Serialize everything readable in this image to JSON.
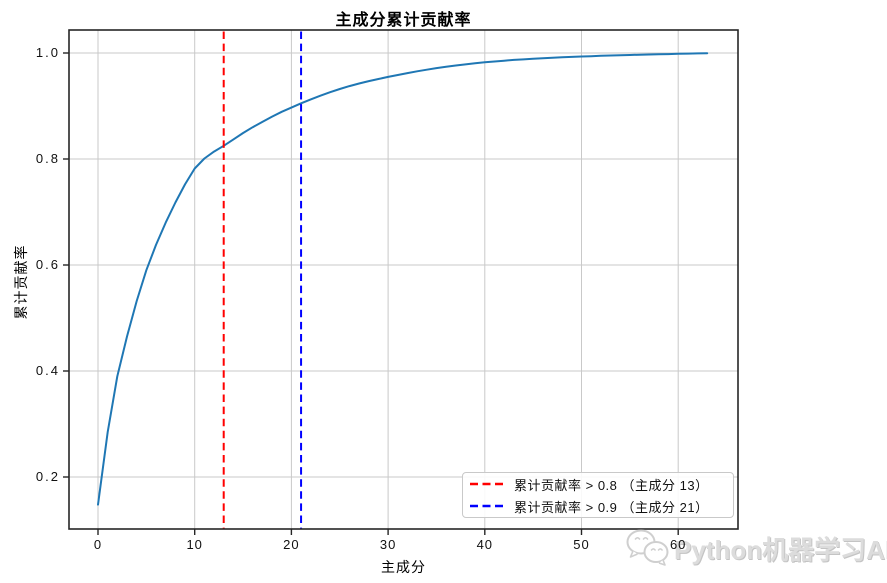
{
  "title": "主成分累计贡献率",
  "watermark": {
    "icon": "wechat-icon",
    "text": "Python机器学习AI"
  },
  "chart_data": {
    "type": "line",
    "title": "主成分累计贡献率",
    "xlabel": "主成分",
    "ylabel": "累计贡献率",
    "grid": true,
    "legend_position": "lower right",
    "xlim": [
      -3.2,
      66.2
    ],
    "ylim": [
      0.102,
      1.043
    ],
    "x_ticks": [
      0,
      10,
      20,
      30,
      40,
      50,
      60
    ],
    "y_ticks": [
      {
        "value": 0.2,
        "label": "0.2"
      },
      {
        "value": 0.4,
        "label": "0.4"
      },
      {
        "value": 0.6,
        "label": "0.6"
      },
      {
        "value": 0.8,
        "label": "0.8"
      },
      {
        "value": 1.0,
        "label": "1.0"
      }
    ],
    "colors": {
      "grid": "#c9c9c9",
      "spine": "#262626",
      "curve": "#1f77b4"
    },
    "series": [
      {
        "name": "累计贡献率",
        "color": "#1f77b4",
        "style": "solid",
        "x_start": 0,
        "y": [
          0.148,
          0.285,
          0.39,
          0.465,
          0.532,
          0.59,
          0.638,
          0.68,
          0.718,
          0.752,
          0.782,
          0.801,
          0.814,
          0.825,
          0.837,
          0.849,
          0.86,
          0.87,
          0.88,
          0.889,
          0.897,
          0.905,
          0.9125,
          0.9195,
          0.926,
          0.932,
          0.9375,
          0.9425,
          0.947,
          0.951,
          0.955,
          0.9585,
          0.962,
          0.9655,
          0.9685,
          0.9715,
          0.974,
          0.9765,
          0.9785,
          0.9805,
          0.9825,
          0.984,
          0.9855,
          0.987,
          0.988,
          0.989,
          0.99,
          0.991,
          0.9918,
          0.9926,
          0.9934,
          0.994,
          0.9947,
          0.9953,
          0.9958,
          0.9963,
          0.9968,
          0.9972,
          0.9976,
          0.998,
          0.9984,
          0.9988,
          0.9992,
          0.9996
        ]
      }
    ],
    "vlines": [
      {
        "x": 13,
        "color": "#ff0000",
        "style": "dashed",
        "label": "累计贡献率 > 0.8 （主成分 13）"
      },
      {
        "x": 21,
        "color": "#0000ff",
        "style": "dashed",
        "label": "累计贡献率 > 0.9 （主成分 21）"
      }
    ]
  }
}
